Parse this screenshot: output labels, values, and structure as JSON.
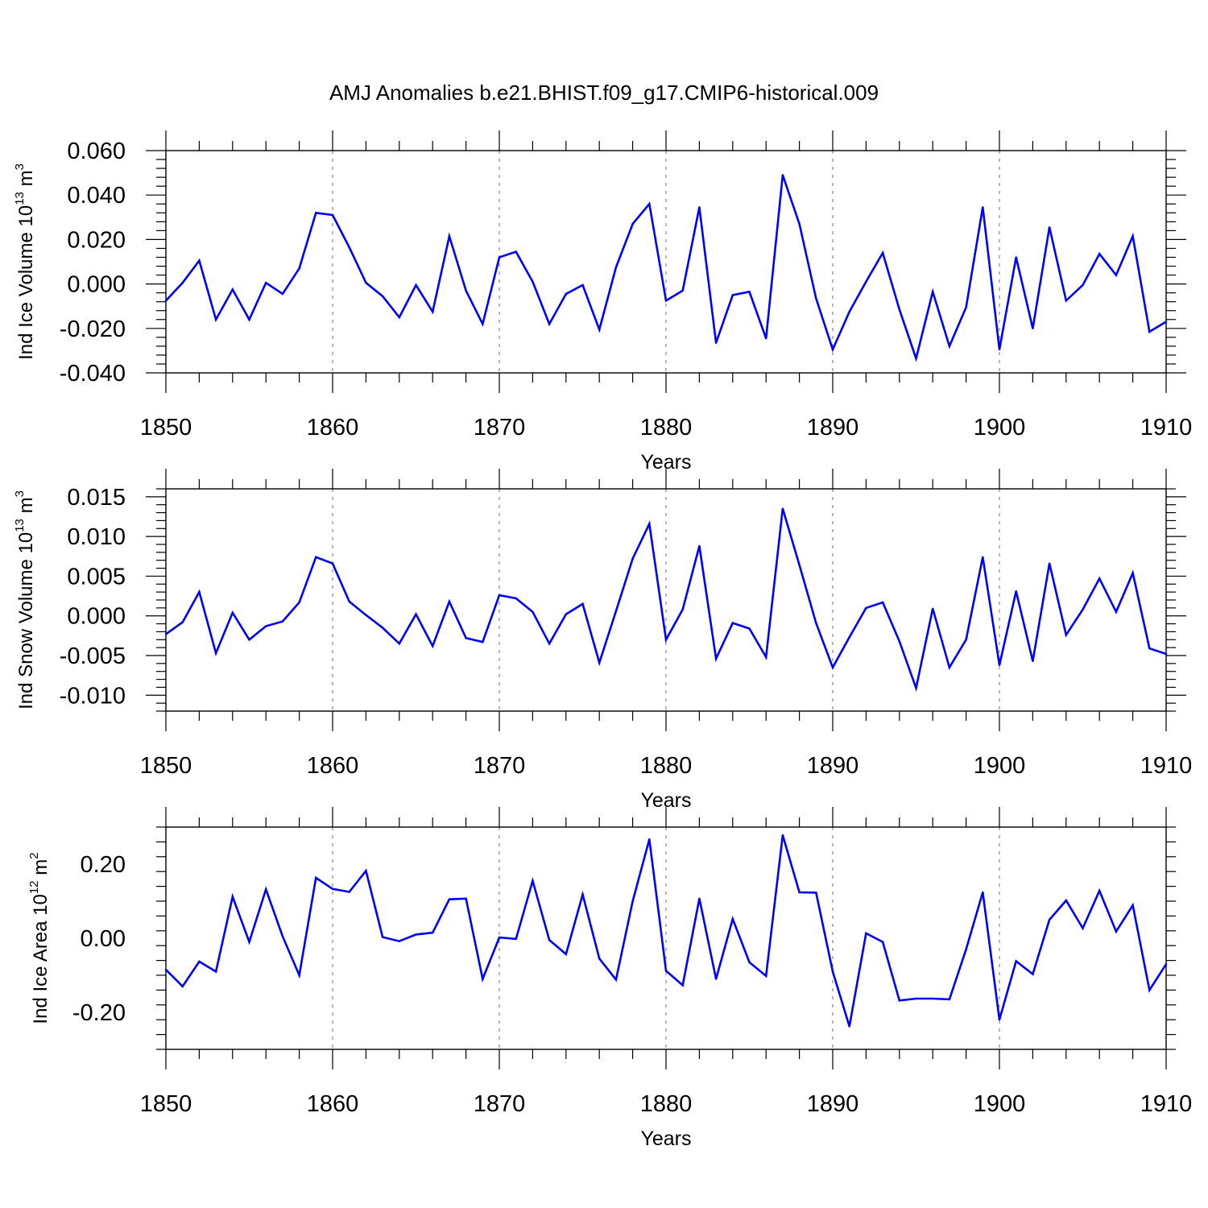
{
  "title": "AMJ Anomalies b.e21.BHIST.f09_g17.CMIP6-historical.009",
  "colors": {
    "line": "#0000ff",
    "axis": "#000000",
    "grid": "#888888"
  },
  "chart_data": [
    {
      "type": "line",
      "ylabel_prefix": "Ind Ice Volume 10",
      "ylabel_exp": "13",
      "ylabel_unit": " m",
      "ylabel_unit_exp": "3",
      "xlabel": "Years",
      "xlim": [
        1850,
        1910
      ],
      "ylim": [
        -0.04,
        0.06
      ],
      "yticks": [
        -0.04,
        -0.02,
        0.0,
        0.02,
        0.04,
        0.06
      ],
      "yticklabels": [
        "-0.040",
        "-0.020",
        "0.000",
        "0.020",
        "0.040",
        "0.060"
      ],
      "xticks": [
        1850,
        1860,
        1870,
        1880,
        1890,
        1900,
        1910
      ],
      "xticklabels": [
        "1850",
        "1860",
        "1870",
        "1880",
        "1890",
        "1900",
        "1910"
      ],
      "series": [
        {
          "name": "Ind Ice Volume",
          "x": [
            1850,
            1851,
            1852,
            1853,
            1854,
            1855,
            1856,
            1857,
            1858,
            1859,
            1860,
            1861,
            1862,
            1863,
            1864,
            1865,
            1866,
            1867,
            1868,
            1869,
            1870,
            1871,
            1872,
            1873,
            1874,
            1875,
            1876,
            1877,
            1878,
            1879,
            1880,
            1881,
            1882,
            1883,
            1884,
            1885,
            1886,
            1887,
            1888,
            1889,
            1890,
            1891,
            1892,
            1893,
            1894,
            1895,
            1896,
            1897,
            1898,
            1899,
            1900,
            1901,
            1902,
            1903,
            1904,
            1905,
            1906,
            1907,
            1908,
            1909,
            1910
          ],
          "values": [
            -0.0075,
            0.0005,
            0.0105,
            -0.016,
            -0.0025,
            -0.016,
            0.0005,
            -0.0045,
            0.007,
            0.032,
            0.031,
            0.0165,
            0.0005,
            -0.0055,
            -0.015,
            -0.0005,
            -0.0125,
            0.0215,
            -0.003,
            -0.018,
            0.012,
            0.0145,
            0.001,
            -0.018,
            -0.0045,
            -0.0005,
            -0.0205,
            0.0075,
            0.027,
            0.036,
            -0.0075,
            -0.003,
            0.0345,
            -0.0265,
            -0.005,
            -0.0035,
            -0.0245,
            0.049,
            0.027,
            -0.0065,
            -0.0295,
            -0.0125,
            0.001,
            0.014,
            -0.0115,
            -0.0335,
            -0.0035,
            -0.028,
            -0.0105,
            0.0345,
            -0.0295,
            0.012,
            -0.02,
            0.0255,
            -0.0075,
            -0.0005,
            0.0135,
            0.004,
            0.0215,
            -0.0215,
            -0.017
          ]
        }
      ]
    },
    {
      "type": "line",
      "ylabel_prefix": "Ind Snow Volume 10",
      "ylabel_exp": "13",
      "ylabel_unit": " m",
      "ylabel_unit_exp": "3",
      "xlabel": "Years",
      "xlim": [
        1850,
        1910
      ],
      "ylim": [
        -0.012,
        0.016
      ],
      "yticks": [
        -0.01,
        -0.005,
        0.0,
        0.005,
        0.01,
        0.015
      ],
      "yticklabels": [
        "-0.010",
        "-0.005",
        "0.000",
        "0.005",
        "0.010",
        "0.015"
      ],
      "xticks": [
        1850,
        1860,
        1870,
        1880,
        1890,
        1900,
        1910
      ],
      "xticklabels": [
        "1850",
        "1860",
        "1870",
        "1880",
        "1890",
        "1900",
        "1910"
      ],
      "series": [
        {
          "name": "Ind Snow Volume",
          "x": [
            1850,
            1851,
            1852,
            1853,
            1854,
            1855,
            1856,
            1857,
            1858,
            1859,
            1860,
            1861,
            1862,
            1863,
            1864,
            1865,
            1866,
            1867,
            1868,
            1869,
            1870,
            1871,
            1872,
            1873,
            1874,
            1875,
            1876,
            1877,
            1878,
            1879,
            1880,
            1881,
            1882,
            1883,
            1884,
            1885,
            1886,
            1887,
            1888,
            1889,
            1890,
            1891,
            1892,
            1893,
            1894,
            1895,
            1896,
            1897,
            1898,
            1899,
            1900,
            1901,
            1902,
            1903,
            1904,
            1905,
            1906,
            1907,
            1908,
            1909,
            1910
          ],
          "values": [
            -0.0023,
            -0.0008,
            0.003,
            -0.0047,
            0.0004,
            -0.003,
            -0.0013,
            -0.0007,
            0.0017,
            0.0074,
            0.0066,
            0.0018,
            0.0001,
            -0.0015,
            -0.0035,
            0.0002,
            -0.0038,
            0.0018,
            -0.0028,
            -0.0033,
            0.0026,
            0.0022,
            0.0005,
            -0.0035,
            0.0002,
            0.0015,
            -0.0059,
            0.0006,
            0.0072,
            0.0116,
            -0.003,
            0.0008,
            0.0088,
            -0.0054,
            -0.0009,
            -0.0016,
            -0.0052,
            0.0135,
            0.0064,
            -0.0009,
            -0.0065,
            -0.0027,
            0.001,
            0.0017,
            -0.0032,
            -0.0091,
            0.0009,
            -0.0065,
            -0.003,
            0.0074,
            -0.0062,
            0.0031,
            -0.0057,
            0.0066,
            -0.0024,
            0.0008,
            0.0047,
            0.0005,
            0.0054,
            -0.0041,
            -0.0048
          ]
        }
      ]
    },
    {
      "type": "line",
      "ylabel_prefix": "Ind Ice Area 10",
      "ylabel_exp": "12",
      "ylabel_unit": " m",
      "ylabel_unit_exp": "2",
      "xlabel": "Years",
      "xlim": [
        1850,
        1910
      ],
      "ylim": [
        -0.3,
        0.3
      ],
      "yticks": [
        -0.2,
        0.0,
        0.2
      ],
      "yticklabels": [
        "-0.20",
        "0.00",
        "0.20"
      ],
      "xticks": [
        1850,
        1860,
        1870,
        1880,
        1890,
        1900,
        1910
      ],
      "xticklabels": [
        "1850",
        "1860",
        "1870",
        "1880",
        "1890",
        "1900",
        "1910"
      ],
      "series": [
        {
          "name": "Ind Ice Area",
          "x": [
            1850,
            1851,
            1852,
            1853,
            1854,
            1855,
            1856,
            1857,
            1858,
            1859,
            1860,
            1861,
            1862,
            1863,
            1864,
            1865,
            1866,
            1867,
            1868,
            1869,
            1870,
            1871,
            1872,
            1873,
            1874,
            1875,
            1876,
            1877,
            1878,
            1879,
            1880,
            1881,
            1882,
            1883,
            1884,
            1885,
            1886,
            1887,
            1888,
            1889,
            1890,
            1891,
            1892,
            1893,
            1894,
            1895,
            1896,
            1897,
            1898,
            1899,
            1900,
            1901,
            1902,
            1903,
            1904,
            1905,
            1906,
            1907,
            1908,
            1909,
            1910
          ],
          "values": [
            -0.085,
            -0.13,
            -0.063,
            -0.09,
            0.112,
            -0.01,
            0.132,
            0.005,
            -0.1,
            0.163,
            0.133,
            0.125,
            0.182,
            0.003,
            -0.008,
            0.01,
            0.015,
            0.105,
            0.107,
            -0.11,
            0.002,
            -0.002,
            0.155,
            -0.005,
            -0.043,
            0.118,
            -0.055,
            -0.112,
            0.1,
            0.267,
            -0.088,
            -0.127,
            0.107,
            -0.11,
            0.052,
            -0.065,
            -0.102,
            0.278,
            0.124,
            0.123,
            -0.09,
            -0.238,
            0.013,
            -0.01,
            -0.168,
            -0.163,
            -0.163,
            -0.165,
            -0.03,
            0.124,
            -0.22,
            -0.062,
            -0.097,
            0.05,
            0.102,
            0.027,
            0.128,
            0.018,
            0.089,
            -0.14,
            -0.07
          ]
        }
      ]
    }
  ]
}
